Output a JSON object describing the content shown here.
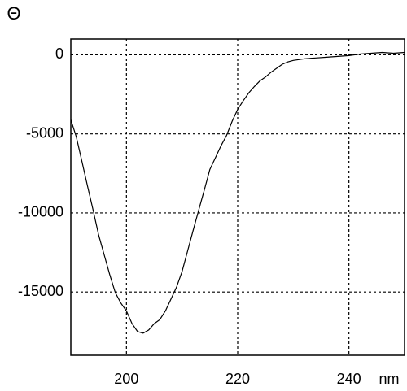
{
  "chart_data": {
    "type": "line",
    "x_label": "nm",
    "y_label": "Θ",
    "x": [
      190,
      191,
      192,
      193,
      194,
      195,
      196,
      197,
      198,
      199,
      200,
      201,
      202,
      203,
      204,
      205,
      206,
      207,
      208,
      209,
      210,
      211,
      212,
      213,
      214,
      215,
      216,
      217,
      218,
      219,
      220,
      221,
      222,
      223,
      224,
      225,
      226,
      227,
      228,
      229,
      230,
      232,
      234,
      236,
      238,
      240,
      242,
      244,
      246,
      248,
      250
    ],
    "series": [
      {
        "color": "#000000",
        "values": [
          -4100,
          -5200,
          -6750,
          -8300,
          -9800,
          -11400,
          -12650,
          -13900,
          -15050,
          -15700,
          -16200,
          -17000,
          -17500,
          -17600,
          -17400,
          -17000,
          -16750,
          -16200,
          -15450,
          -14700,
          -13700,
          -12400,
          -11100,
          -9800,
          -8550,
          -7250,
          -6500,
          -5750,
          -5100,
          -4200,
          -3450,
          -2900,
          -2400,
          -2000,
          -1650,
          -1400,
          -1100,
          -850,
          -600,
          -450,
          -350,
          -250,
          -200,
          -150,
          -100,
          -50,
          50,
          100,
          150,
          100,
          150
        ]
      }
    ],
    "xlim": [
      190,
      250
    ],
    "xticks": [
      200,
      220,
      240
    ],
    "ylim": [
      -19000,
      1000
    ],
    "yticks": [
      0,
      -5000,
      -10000,
      -15000
    ],
    "grid": true
  }
}
